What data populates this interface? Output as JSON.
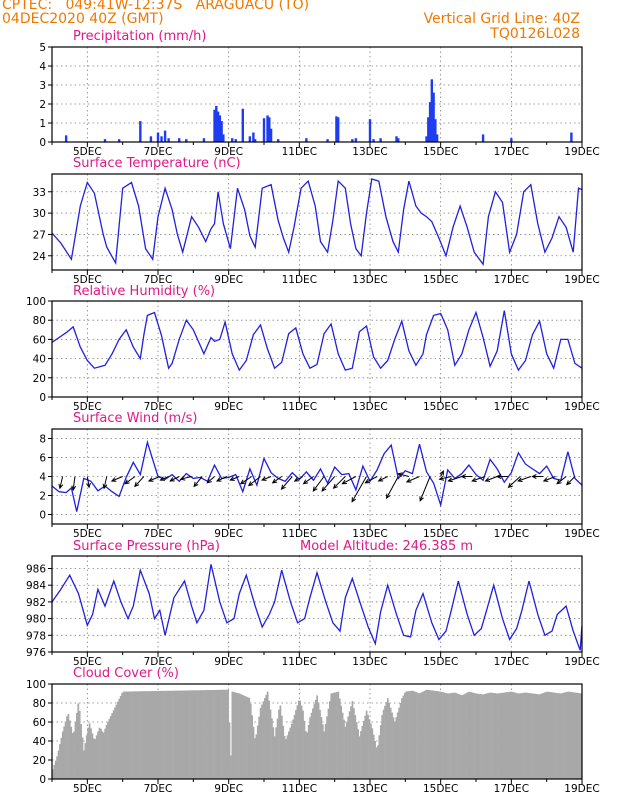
{
  "header": {
    "line1": "CPTEC:   049:41W-12:37S   ARAGUACU (TO)",
    "line2": "04DEC2020 40Z (GMT)",
    "grid_note": "Vertical Grid Line: 40Z",
    "code": "TQ0126L028"
  },
  "colors": {
    "header": "#f07800",
    "title": "#e0188a",
    "line": "#2020e0",
    "bar": "#1e3cf0",
    "cloud": "#a8a8a8",
    "grid": "#808080"
  },
  "chart_data": [
    {
      "type": "bar",
      "title": "Precipitation (mm/h)",
      "x_unit": "day (Dec 2020)",
      "xlim": [
        4.0,
        19.0
      ],
      "x_ticks": [
        "5DEC",
        "7DEC",
        "9DEC",
        "11DEC",
        "13DEC",
        "15DEC",
        "17DEC",
        "19DEC"
      ],
      "x_tick_days": [
        5,
        7,
        9,
        11,
        13,
        15,
        17,
        19
      ],
      "y_ticks": [
        0,
        1,
        2,
        3,
        4,
        5
      ],
      "ylim": [
        0,
        5
      ],
      "x": [
        4.4,
        5.5,
        5.9,
        6.5,
        6.8,
        7.0,
        7.1,
        7.2,
        7.3,
        7.6,
        7.8,
        8.3,
        8.6,
        8.65,
        8.7,
        8.75,
        8.8,
        8.85,
        9.1,
        9.2,
        9.4,
        9.6,
        9.7,
        9.75,
        10.0,
        10.1,
        10.15,
        10.2,
        10.4,
        11.2,
        11.8,
        12.05,
        12.1,
        12.5,
        12.6,
        13.0,
        13.1,
        13.3,
        13.75,
        13.8,
        14.6,
        14.65,
        14.7,
        14.75,
        14.8,
        14.85,
        14.9,
        16.2,
        17.0,
        18.7
      ],
      "values": [
        0.35,
        0.15,
        0.15,
        1.1,
        0.3,
        0.5,
        0.3,
        0.6,
        0.2,
        0.2,
        0.15,
        0.2,
        1.7,
        1.9,
        1.6,
        1.4,
        1.1,
        0.4,
        0.2,
        0.15,
        1.75,
        0.3,
        0.5,
        0.15,
        1.25,
        1.4,
        1.3,
        0.7,
        0.15,
        0.2,
        0.15,
        1.35,
        1.3,
        0.15,
        0.2,
        1.2,
        0.15,
        0.2,
        0.3,
        0.2,
        0.3,
        1.3,
        2.1,
        3.3,
        2.6,
        1.2,
        0.4,
        0.4,
        0.2,
        0.5
      ]
    },
    {
      "type": "line",
      "title": "Surface Temperature (nC)",
      "x_unit": "day (Dec 2020)",
      "xlim": [
        4.0,
        19.0
      ],
      "x_ticks": [
        "5DEC",
        "7DEC",
        "9DEC",
        "11DEC",
        "13DEC",
        "15DEC",
        "17DEC",
        "19DEC"
      ],
      "x_tick_days": [
        5,
        7,
        9,
        11,
        13,
        15,
        17,
        19
      ],
      "y_ticks": [
        24,
        27,
        30,
        33
      ],
      "ylim": [
        22,
        35.5
      ],
      "x": [
        4.0,
        4.25,
        4.55,
        4.8,
        5.0,
        5.2,
        5.45,
        5.55,
        5.8,
        6.0,
        6.25,
        6.45,
        6.65,
        6.85,
        7.0,
        7.2,
        7.4,
        7.55,
        7.7,
        7.95,
        8.15,
        8.35,
        8.5,
        8.6,
        8.7,
        8.85,
        9.05,
        9.25,
        9.45,
        9.6,
        9.75,
        9.95,
        10.2,
        10.4,
        10.55,
        10.7,
        10.85,
        11.05,
        11.25,
        11.45,
        11.6,
        11.8,
        11.95,
        12.1,
        12.3,
        12.45,
        12.6,
        12.75,
        12.9,
        13.05,
        13.25,
        13.45,
        13.65,
        13.8,
        13.95,
        14.1,
        14.3,
        14.45,
        14.6,
        14.75,
        14.95,
        15.15,
        15.35,
        15.55,
        15.75,
        15.95,
        16.2,
        16.35,
        16.55,
        16.75,
        16.95,
        17.15,
        17.35,
        17.55,
        17.75,
        17.95,
        18.15,
        18.35,
        18.55,
        18.75,
        18.9,
        19.0
      ],
      "values": [
        27.2,
        25.8,
        23.5,
        31.0,
        34.3,
        32.8,
        27.0,
        25.2,
        23.0,
        33.5,
        34.3,
        31.0,
        25.0,
        23.5,
        29.5,
        33.5,
        30.5,
        27.0,
        24.5,
        29.5,
        28.0,
        26.0,
        27.8,
        28.5,
        33.0,
        28.5,
        25.0,
        33.5,
        30.5,
        26.8,
        25.2,
        33.5,
        34.0,
        29.0,
        26.5,
        24.5,
        28.0,
        33.5,
        34.5,
        31.0,
        26.0,
        24.5,
        29.0,
        34.5,
        33.5,
        28.5,
        25.0,
        24.0,
        30.0,
        34.8,
        34.5,
        29.5,
        26.0,
        24.5,
        30.5,
        34.5,
        31.0,
        30.0,
        29.5,
        28.8,
        26.5,
        24.0,
        28.0,
        31.0,
        28.0,
        24.5,
        22.8,
        29.5,
        33.0,
        31.5,
        24.5,
        27.0,
        33.0,
        34.0,
        28.5,
        24.5,
        26.5,
        29.5,
        28.0,
        24.5,
        33.5,
        33.3
      ]
    },
    {
      "type": "line",
      "title": "Relative Humidity (%)",
      "x_unit": "day (Dec 2020)",
      "xlim": [
        4.0,
        19.0
      ],
      "x_ticks": [
        "5DEC",
        "7DEC",
        "9DEC",
        "11DEC",
        "13DEC",
        "15DEC",
        "17DEC",
        "19DEC"
      ],
      "x_tick_days": [
        5,
        7,
        9,
        11,
        13,
        15,
        17,
        19
      ],
      "y_ticks": [
        0,
        20,
        40,
        60,
        80,
        100
      ],
      "ylim": [
        0,
        100
      ],
      "x": [
        4.0,
        4.2,
        4.4,
        4.6,
        4.8,
        5.0,
        5.2,
        5.5,
        5.7,
        5.9,
        6.1,
        6.3,
        6.5,
        6.6,
        6.7,
        6.9,
        7.1,
        7.3,
        7.4,
        7.6,
        7.8,
        8.0,
        8.3,
        8.5,
        8.6,
        8.75,
        8.9,
        9.1,
        9.3,
        9.5,
        9.7,
        9.9,
        10.1,
        10.3,
        10.5,
        10.7,
        10.9,
        11.1,
        11.3,
        11.5,
        11.7,
        11.9,
        12.1,
        12.3,
        12.5,
        12.7,
        12.9,
        13.1,
        13.3,
        13.5,
        13.7,
        13.9,
        14.1,
        14.3,
        14.5,
        14.6,
        14.8,
        15.0,
        15.2,
        15.4,
        15.6,
        15.8,
        16.0,
        16.2,
        16.4,
        16.6,
        16.8,
        17.0,
        17.2,
        17.4,
        17.6,
        17.8,
        18.0,
        18.2,
        18.4,
        18.6,
        18.8,
        19.0
      ],
      "values": [
        57,
        62,
        67,
        73,
        52,
        38,
        30,
        33,
        45,
        60,
        70,
        52,
        40,
        65,
        85,
        88,
        64,
        30,
        35,
        60,
        80,
        70,
        45,
        62,
        58,
        60,
        78,
        45,
        28,
        38,
        65,
        75,
        50,
        30,
        36,
        66,
        72,
        45,
        30,
        34,
        66,
        76,
        45,
        28,
        30,
        68,
        74,
        42,
        30,
        38,
        60,
        79,
        48,
        33,
        45,
        65,
        85,
        87,
        70,
        33,
        45,
        70,
        88,
        62,
        32,
        48,
        90,
        45,
        28,
        38,
        65,
        79,
        45,
        30,
        60,
        60,
        35,
        30
      ]
    },
    {
      "type": "line",
      "title": "Surface Wind (m/s)",
      "x_unit": "day (Dec 2020)",
      "xlim": [
        4.0,
        19.0
      ],
      "x_ticks": [
        "5DEC",
        "7DEC",
        "9DEC",
        "11DEC",
        "13DEC",
        "15DEC",
        "17DEC",
        "19DEC"
      ],
      "x_tick_days": [
        5,
        7,
        9,
        11,
        13,
        15,
        17,
        19
      ],
      "y_ticks": [
        0,
        2,
        4,
        6,
        8
      ],
      "ylim": [
        -1,
        9
      ],
      "x": [
        4.0,
        4.2,
        4.4,
        4.55,
        4.7,
        4.9,
        5.1,
        5.3,
        5.5,
        5.7,
        5.9,
        6.1,
        6.3,
        6.5,
        6.7,
        6.85,
        7.0,
        7.2,
        7.4,
        7.6,
        7.8,
        8.0,
        8.2,
        8.4,
        8.6,
        8.8,
        9.0,
        9.2,
        9.4,
        9.6,
        9.8,
        10.0,
        10.2,
        10.4,
        10.6,
        10.8,
        11.0,
        11.2,
        11.4,
        11.6,
        11.8,
        12.0,
        12.2,
        12.4,
        12.6,
        12.8,
        13.0,
        13.2,
        13.4,
        13.6,
        13.8,
        14.0,
        14.2,
        14.4,
        14.6,
        14.8,
        15.0,
        15.2,
        15.4,
        15.6,
        15.8,
        16.0,
        16.2,
        16.4,
        16.6,
        16.8,
        17.0,
        17.2,
        17.4,
        17.6,
        17.8,
        18.0,
        18.2,
        18.4,
        18.6,
        18.8,
        19.0
      ],
      "values": [
        3.0,
        2.4,
        2.3,
        2.8,
        0.3,
        3.8,
        3.5,
        2.5,
        3.0,
        2.4,
        1.9,
        3.9,
        5.5,
        4.2,
        7.6,
        5.8,
        4.0,
        3.7,
        4.2,
        3.5,
        4.3,
        3.8,
        3.9,
        3.5,
        5.2,
        3.8,
        3.9,
        4.2,
        2.4,
        4.8,
        3.1,
        5.9,
        4.4,
        3.8,
        3.5,
        4.4,
        3.7,
        4.5,
        3.6,
        4.8,
        3.3,
        5.0,
        4.2,
        4.3,
        2.6,
        5.1,
        3.5,
        4.7,
        6.4,
        7.3,
        3.8,
        4.6,
        4.3,
        7.4,
        4.5,
        3.3,
        1.0,
        4.7,
        3.8,
        4.3,
        5.2,
        4.2,
        3.6,
        5.8,
        4.8,
        3.4,
        4.4,
        6.5,
        5.3,
        4.8,
        4.3,
        5.1,
        3.8,
        3.6,
        6.6,
        3.8,
        3.1
      ],
      "arrows": {
        "x": [
          4.3,
          4.65,
          5.0,
          5.55,
          6.0,
          6.35,
          6.6,
          7.05,
          7.3,
          7.6,
          7.95,
          8.25,
          8.6,
          8.95,
          9.3,
          9.65,
          9.9,
          10.2,
          10.5,
          10.8,
          11.1,
          11.4,
          11.7,
          12.0,
          12.3,
          12.6,
          12.9,
          13.2,
          13.5,
          13.8,
          14.1,
          14.4,
          14.7,
          15.0,
          15.3,
          15.6,
          15.9,
          16.25,
          16.6,
          16.9,
          17.25,
          17.55,
          17.9,
          18.25,
          18.55,
          18.8
        ],
        "u": [
          -0.3,
          -0.2,
          0.2,
          -0.3,
          -1.2,
          -1.1,
          -1.0,
          -1.2,
          -0.9,
          -1.0,
          -1.2,
          -0.9,
          -0.8,
          -1.1,
          -1.0,
          -1.2,
          -1.3,
          -1.0,
          -1.0,
          -1.2,
          -0.9,
          -1.1,
          -1.2,
          -1.4,
          -1.3,
          -1.5,
          -1.6,
          -1.3,
          -1.0,
          -1.3,
          -1.2,
          -1.4,
          -1.1,
          0.3,
          -1.3,
          -1.5,
          -1.2,
          -1.4,
          -1.3,
          -1.2,
          -1.3,
          -1.4,
          -1.2,
          -1.3,
          -1.0,
          -0.9
        ],
        "v": [
          -1.3,
          -1.5,
          -1.2,
          -1.3,
          -0.5,
          -0.8,
          -1.1,
          -0.5,
          -0.4,
          -0.5,
          -0.3,
          -1.1,
          -0.7,
          -0.5,
          -0.4,
          -0.8,
          -1.0,
          -0.4,
          -0.7,
          -1.4,
          -0.5,
          -0.8,
          -1.6,
          -1.6,
          -1.3,
          -0.8,
          -2.8,
          -0.7,
          -0.5,
          -2.4,
          0.3,
          -0.6,
          -2.7,
          0.6,
          -0.3,
          -0.5,
          0.0,
          -0.5,
          -0.5,
          0.0,
          -1.2,
          -0.5,
          0.0,
          -0.5,
          -0.8,
          -0.9
        ]
      }
    },
    {
      "type": "line",
      "title": "Surface Pressure (hPa)",
      "annotation": "Model Altitude: 246.385 m",
      "x_unit": "day (Dec 2020)",
      "xlim": [
        4.0,
        19.0
      ],
      "x_ticks": [
        "5DEC",
        "7DEC",
        "9DEC",
        "11DEC",
        "13DEC",
        "15DEC",
        "17DEC",
        "19DEC"
      ],
      "x_tick_days": [
        5,
        7,
        9,
        11,
        13,
        15,
        17,
        19
      ],
      "y_ticks": [
        976,
        978,
        980,
        982,
        984,
        986
      ],
      "ylim": [
        976,
        987.5
      ],
      "x": [
        4.0,
        4.25,
        4.5,
        4.75,
        5.0,
        5.15,
        5.3,
        5.5,
        5.75,
        5.95,
        6.15,
        6.3,
        6.5,
        6.75,
        6.9,
        7.05,
        7.2,
        7.45,
        7.75,
        7.95,
        8.1,
        8.3,
        8.5,
        8.75,
        8.95,
        9.15,
        9.3,
        9.5,
        9.75,
        9.95,
        10.15,
        10.3,
        10.5,
        10.75,
        10.95,
        11.15,
        11.3,
        11.5,
        11.75,
        11.95,
        12.15,
        12.3,
        12.5,
        12.75,
        12.95,
        13.15,
        13.3,
        13.5,
        13.75,
        13.95,
        14.15,
        14.3,
        14.5,
        14.75,
        14.95,
        15.15,
        15.3,
        15.5,
        15.75,
        15.95,
        16.15,
        16.3,
        16.5,
        16.75,
        16.95,
        17.15,
        17.3,
        17.5,
        17.75,
        17.95,
        18.15,
        18.3,
        18.55,
        18.75,
        18.95,
        19.0
      ],
      "values": [
        982.0,
        983.5,
        985.2,
        983.0,
        979.2,
        980.5,
        983.5,
        981.5,
        984.5,
        982.0,
        980.0,
        981.5,
        985.8,
        983.0,
        980.0,
        981.0,
        978.0,
        982.5,
        984.5,
        981.5,
        979.5,
        981.0,
        986.5,
        982.0,
        979.5,
        980.0,
        983.0,
        985.2,
        981.5,
        979.0,
        980.5,
        982.0,
        985.8,
        982.0,
        979.5,
        980.0,
        982.5,
        985.5,
        982.0,
        979.5,
        978.5,
        982.5,
        984.8,
        981.5,
        979.0,
        977.0,
        980.8,
        984.0,
        980.5,
        978.0,
        977.8,
        981.0,
        983.0,
        979.5,
        977.5,
        978.5,
        981.0,
        984.5,
        980.5,
        978.0,
        978.8,
        981.0,
        984.0,
        980.0,
        977.5,
        978.8,
        981.0,
        984.5,
        980.5,
        978.0,
        978.5,
        980.5,
        981.5,
        978.5,
        976.2,
        979.2
      ]
    },
    {
      "type": "bar",
      "title": "Cloud Cover (%)",
      "x_unit": "day (Dec 2020)",
      "xlim": [
        4.0,
        19.0
      ],
      "x_ticks": [
        "5DEC",
        "7DEC",
        "9DEC",
        "11DEC",
        "13DEC",
        "15DEC",
        "17DEC",
        "19DEC"
      ],
      "x_tick_days": [
        5,
        7,
        9,
        11,
        13,
        15,
        17,
        19
      ],
      "y_ticks": [
        0,
        20,
        40,
        60,
        80,
        100
      ],
      "ylim": [
        0,
        100
      ],
      "x_step": 0.04,
      "profile": {
        "x": [
          4.0,
          4.15,
          4.3,
          4.45,
          4.6,
          4.75,
          4.9,
          5.05,
          5.2,
          5.35,
          5.45,
          5.55,
          6.0,
          7.5,
          9.0,
          9.05,
          9.1,
          9.3,
          9.6,
          9.75,
          9.9,
          10.1,
          10.3,
          10.45,
          10.6,
          10.8,
          11.0,
          11.1,
          11.2,
          11.3,
          11.5,
          11.7,
          11.9,
          12.1,
          12.3,
          12.5,
          12.7,
          12.9,
          13.05,
          13.2,
          13.35,
          13.5,
          13.7,
          13.9,
          14.0,
          14.2,
          14.4,
          14.6,
          14.8,
          15.0,
          15.2,
          15.4,
          15.6,
          15.8,
          16.0,
          16.2,
          16.4,
          16.6,
          16.8,
          17.0,
          17.2,
          17.4,
          17.6,
          17.8,
          18.0,
          18.2,
          18.4,
          18.6,
          18.8,
          19.0
        ],
        "values": [
          8,
          25,
          50,
          70,
          45,
          82,
          30,
          60,
          40,
          55,
          48,
          58,
          92,
          93,
          94,
          8,
          92,
          90,
          85,
          40,
          75,
          92,
          45,
          80,
          40,
          60,
          85,
          72,
          45,
          65,
          88,
          50,
          90,
          92,
          55,
          82,
          45,
          72,
          55,
          30,
          70,
          85,
          60,
          85,
          92,
          93,
          90,
          94,
          93,
          92,
          90,
          91,
          88,
          92,
          90,
          89,
          91,
          90,
          91,
          92,
          90,
          91,
          90,
          89,
          92,
          91,
          90,
          92,
          91,
          90
        ]
      }
    }
  ]
}
